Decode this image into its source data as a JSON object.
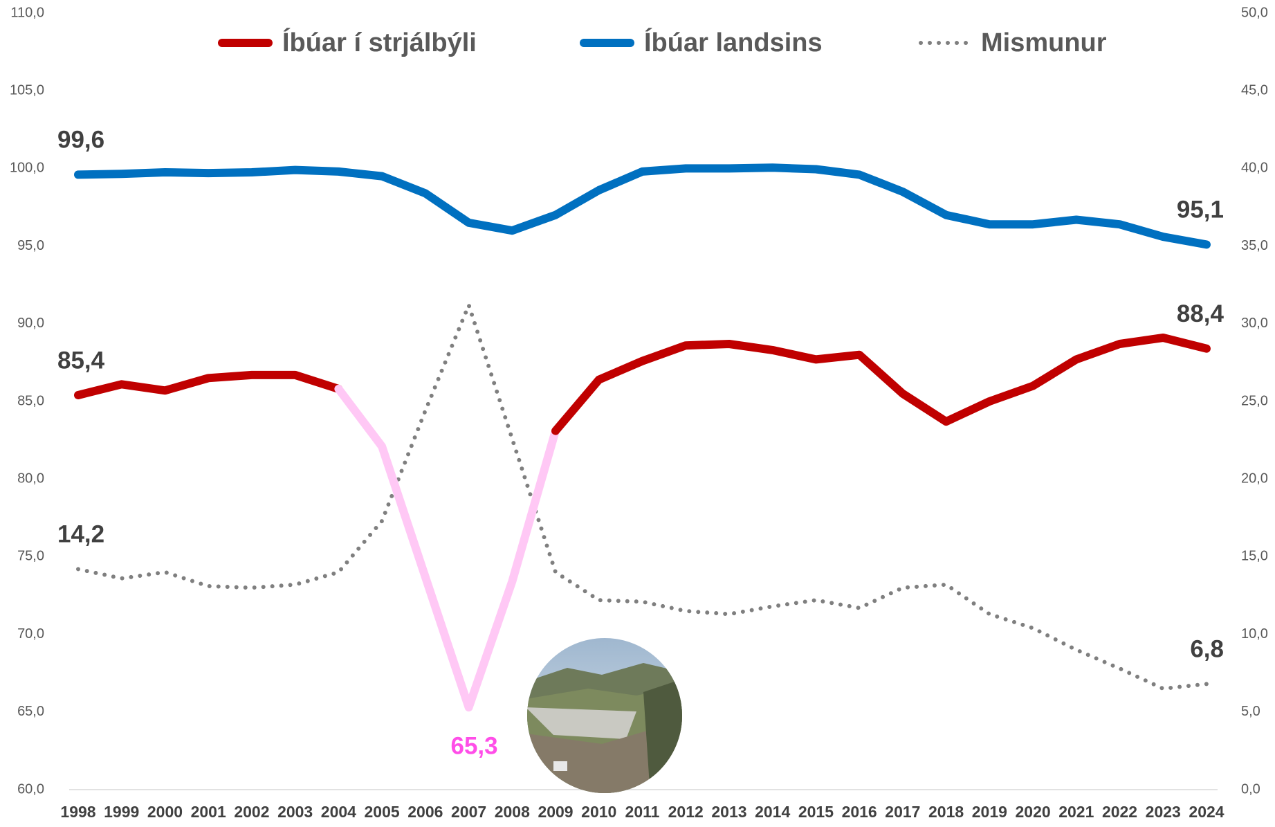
{
  "chart_data": {
    "type": "line",
    "categories": [
      "1998",
      "1999",
      "2000",
      "2001",
      "2002",
      "2003",
      "2004",
      "2005",
      "2006",
      "2007",
      "2008",
      "2009",
      "2010",
      "2011",
      "2012",
      "2013",
      "2014",
      "2015",
      "2016",
      "2017",
      "2018",
      "2019",
      "2020",
      "2021",
      "2022",
      "2023",
      "2024"
    ],
    "ylim": [
      60,
      110
    ],
    "yticks": [
      {
        "value": 60,
        "label": "60,0"
      },
      {
        "value": 65,
        "label": "65,0"
      },
      {
        "value": 70,
        "label": "70,0"
      },
      {
        "value": 75,
        "label": "75,0"
      },
      {
        "value": 80,
        "label": "80,0"
      },
      {
        "value": 85,
        "label": "85,0"
      },
      {
        "value": 90,
        "label": "90,0"
      },
      {
        "value": 95,
        "label": "95,0"
      },
      {
        "value": 100,
        "label": "100,0"
      },
      {
        "value": 105,
        "label": "105,0"
      },
      {
        "value": 110,
        "label": "110,0"
      }
    ],
    "y2lim": [
      0,
      50
    ],
    "y2ticks": [
      {
        "value": 0,
        "label": "0,0"
      },
      {
        "value": 5,
        "label": "5,0"
      },
      {
        "value": 10,
        "label": "10,0"
      },
      {
        "value": 15,
        "label": "15,0"
      },
      {
        "value": 20,
        "label": "20,0"
      },
      {
        "value": 25,
        "label": "25,0"
      },
      {
        "value": 30,
        "label": "30,0"
      },
      {
        "value": 35,
        "label": "35,0"
      },
      {
        "value": 40,
        "label": "40,0"
      },
      {
        "value": 45,
        "label": "45,0"
      },
      {
        "value": 50,
        "label": "50,0"
      }
    ],
    "grid": false,
    "legend": "top",
    "series": [
      {
        "name": "Íbúar í strjálbýli",
        "color": "#c00000",
        "style": "solid",
        "values": [
          85.4,
          86.1,
          85.7,
          86.5,
          86.7,
          86.7,
          85.8,
          82.1,
          73.7,
          65.3,
          73.4,
          83.1,
          86.4,
          87.6,
          88.6,
          88.7,
          88.3,
          87.7,
          88.0,
          85.5,
          83.7,
          85.0,
          86.0,
          87.7,
          88.7,
          89.1,
          88.4
        ],
        "value_labels": [
          "85,4",
          null,
          null,
          null,
          null,
          null,
          null,
          null,
          null,
          "65,3",
          null,
          null,
          null,
          null,
          null,
          null,
          null,
          null,
          null,
          null,
          null,
          null,
          null,
          null,
          null,
          null,
          "88,4"
        ],
        "highlight": {
          "from": "2004",
          "to": "2009",
          "color": "#ffc8f5",
          "label_color": "#ff4ee8"
        }
      },
      {
        "name": "Íbúar landsins",
        "color": "#0070c0",
        "style": "solid",
        "values": [
          99.6,
          99.65,
          99.75,
          99.7,
          99.75,
          99.9,
          99.8,
          99.5,
          98.4,
          96.5,
          96.0,
          97.0,
          98.6,
          99.8,
          100.0,
          100.0,
          100.05,
          99.95,
          99.6,
          98.5,
          97.0,
          96.4,
          96.4,
          96.7,
          96.4,
          95.6,
          95.1
        ],
        "value_labels": [
          "99,6",
          null,
          null,
          null,
          null,
          null,
          null,
          null,
          null,
          null,
          null,
          null,
          null,
          null,
          null,
          null,
          null,
          null,
          null,
          null,
          null,
          null,
          null,
          null,
          null,
          null,
          "95,1"
        ]
      },
      {
        "name": "Mismunur",
        "color": "#7f7f7f",
        "style": "dotted",
        "axis": "y2",
        "values": [
          14.2,
          13.6,
          14.0,
          13.1,
          13.0,
          13.2,
          14.0,
          17.3,
          24.4,
          31.2,
          22.6,
          14.0,
          12.2,
          12.1,
          11.5,
          11.3,
          11.8,
          12.2,
          11.7,
          13.0,
          13.2,
          11.3,
          10.4,
          9.0,
          7.8,
          6.5,
          6.8
        ],
        "value_labels": [
          "14,2",
          null,
          null,
          null,
          null,
          null,
          null,
          null,
          null,
          null,
          null,
          null,
          null,
          null,
          null,
          null,
          null,
          null,
          null,
          null,
          null,
          null,
          null,
          null,
          null,
          null,
          "6,8"
        ]
      }
    ]
  }
}
